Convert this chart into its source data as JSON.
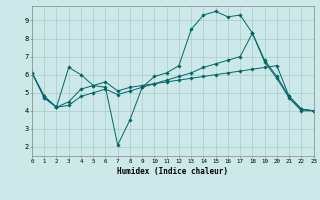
{
  "xlabel": "Humidex (Indice chaleur)",
  "bg_color": "#cce8e8",
  "grid_color": "#aacccc",
  "line_color": "#006666",
  "xlim": [
    0,
    23
  ],
  "ylim": [
    1.5,
    9.8
  ],
  "yticks": [
    2,
    3,
    4,
    5,
    6,
    7,
    8,
    9
  ],
  "xticks": [
    0,
    1,
    2,
    3,
    4,
    5,
    6,
    7,
    8,
    9,
    10,
    11,
    12,
    13,
    14,
    15,
    16,
    17,
    18,
    19,
    20,
    21,
    22,
    23
  ],
  "series": [
    {
      "x": [
        0,
        1,
        2,
        3,
        4,
        5,
        6,
        7,
        8,
        9,
        10,
        11,
        12,
        13,
        14,
        15,
        16,
        17,
        18,
        19,
        20,
        21,
        22,
        23
      ],
      "y": [
        6.1,
        4.7,
        4.2,
        6.4,
        6.0,
        5.4,
        5.3,
        2.1,
        3.5,
        5.3,
        5.9,
        6.1,
        6.5,
        8.5,
        9.3,
        9.5,
        9.2,
        9.3,
        8.3,
        6.7,
        5.8,
        4.7,
        4.0,
        4.0
      ]
    },
    {
      "x": [
        0,
        1,
        2,
        3,
        4,
        5,
        6,
        7,
        8,
        9,
        10,
        11,
        12,
        13,
        14,
        15,
        16,
        17,
        18,
        19,
        20,
        21,
        22,
        23
      ],
      "y": [
        6.1,
        4.8,
        4.2,
        4.3,
        4.8,
        5.0,
        5.2,
        4.9,
        5.1,
        5.3,
        5.5,
        5.7,
        5.9,
        6.1,
        6.4,
        6.6,
        6.8,
        7.0,
        8.3,
        6.8,
        5.9,
        4.8,
        4.1,
        4.0
      ]
    },
    {
      "x": [
        0,
        1,
        2,
        3,
        4,
        5,
        6,
        7,
        8,
        9,
        10,
        11,
        12,
        13,
        14,
        15,
        16,
        17,
        18,
        19,
        20,
        21,
        22,
        23
      ],
      "y": [
        6.1,
        4.8,
        4.2,
        4.5,
        5.2,
        5.4,
        5.6,
        5.1,
        5.3,
        5.4,
        5.5,
        5.6,
        5.7,
        5.8,
        5.9,
        6.0,
        6.1,
        6.2,
        6.3,
        6.4,
        6.5,
        4.8,
        4.1,
        4.0
      ]
    }
  ]
}
